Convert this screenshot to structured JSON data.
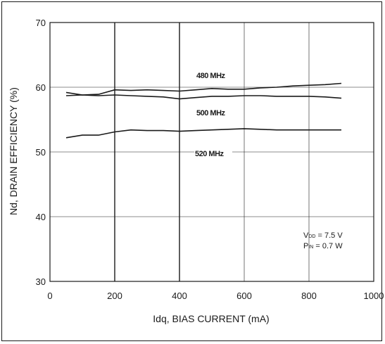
{
  "chart_data": {
    "type": "line",
    "xlabel": "Idq, BIAS CURRENT   (mA)",
    "ylabel": "Nd, DRAIN EFFICIENCY  (%)",
    "xlim": [
      0,
      1000
    ],
    "ylim": [
      30,
      70
    ],
    "xticks": [
      "0",
      "200",
      "400",
      "600",
      "800",
      "1000"
    ],
    "yticks": [
      "30",
      "40",
      "50",
      "60",
      "70"
    ],
    "grid": true,
    "series": [
      {
        "name": "480 MHz",
        "x": [
          50,
          100,
          150,
          200,
          250,
          300,
          350,
          400,
          450,
          500,
          550,
          600,
          650,
          700,
          750,
          800,
          850,
          900
        ],
        "y": [
          59.2,
          58.8,
          58.9,
          59.6,
          59.5,
          59.6,
          59.5,
          59.4,
          59.6,
          59.8,
          59.7,
          59.7,
          59.9,
          60.0,
          60.2,
          60.3,
          60.4,
          60.6
        ]
      },
      {
        "name": "500 MHz",
        "x": [
          50,
          100,
          150,
          200,
          250,
          300,
          350,
          400,
          450,
          500,
          550,
          600,
          650,
          700,
          750,
          800,
          850,
          900
        ],
        "y": [
          58.7,
          58.8,
          58.7,
          58.8,
          58.7,
          58.6,
          58.5,
          58.2,
          58.4,
          58.6,
          58.6,
          58.7,
          58.7,
          58.6,
          58.6,
          58.6,
          58.5,
          58.3
        ]
      },
      {
        "name": "520 MHz",
        "x": [
          50,
          100,
          150,
          200,
          250,
          300,
          350,
          400,
          450,
          500,
          550,
          600,
          650,
          700,
          750,
          800,
          850,
          900
        ],
        "y": [
          52.2,
          52.6,
          52.6,
          53.1,
          53.4,
          53.3,
          53.3,
          53.2,
          53.3,
          53.4,
          53.5,
          53.6,
          53.5,
          53.4,
          53.4,
          53.4,
          53.4,
          53.4
        ]
      }
    ],
    "series_labels": {
      "s480": "480 MHz",
      "s500": "500 MHz",
      "s520": "520 MHz"
    },
    "conditions": {
      "vdd_main": "V",
      "vdd_sub": "DD",
      "vdd_value": " = 7.5 V",
      "pin_main": "P",
      "pin_sub": "IN",
      "pin_value": " = 0.7 W"
    },
    "colors": {
      "line": "#1a1a1a",
      "grid": "#1a1a1a"
    }
  }
}
